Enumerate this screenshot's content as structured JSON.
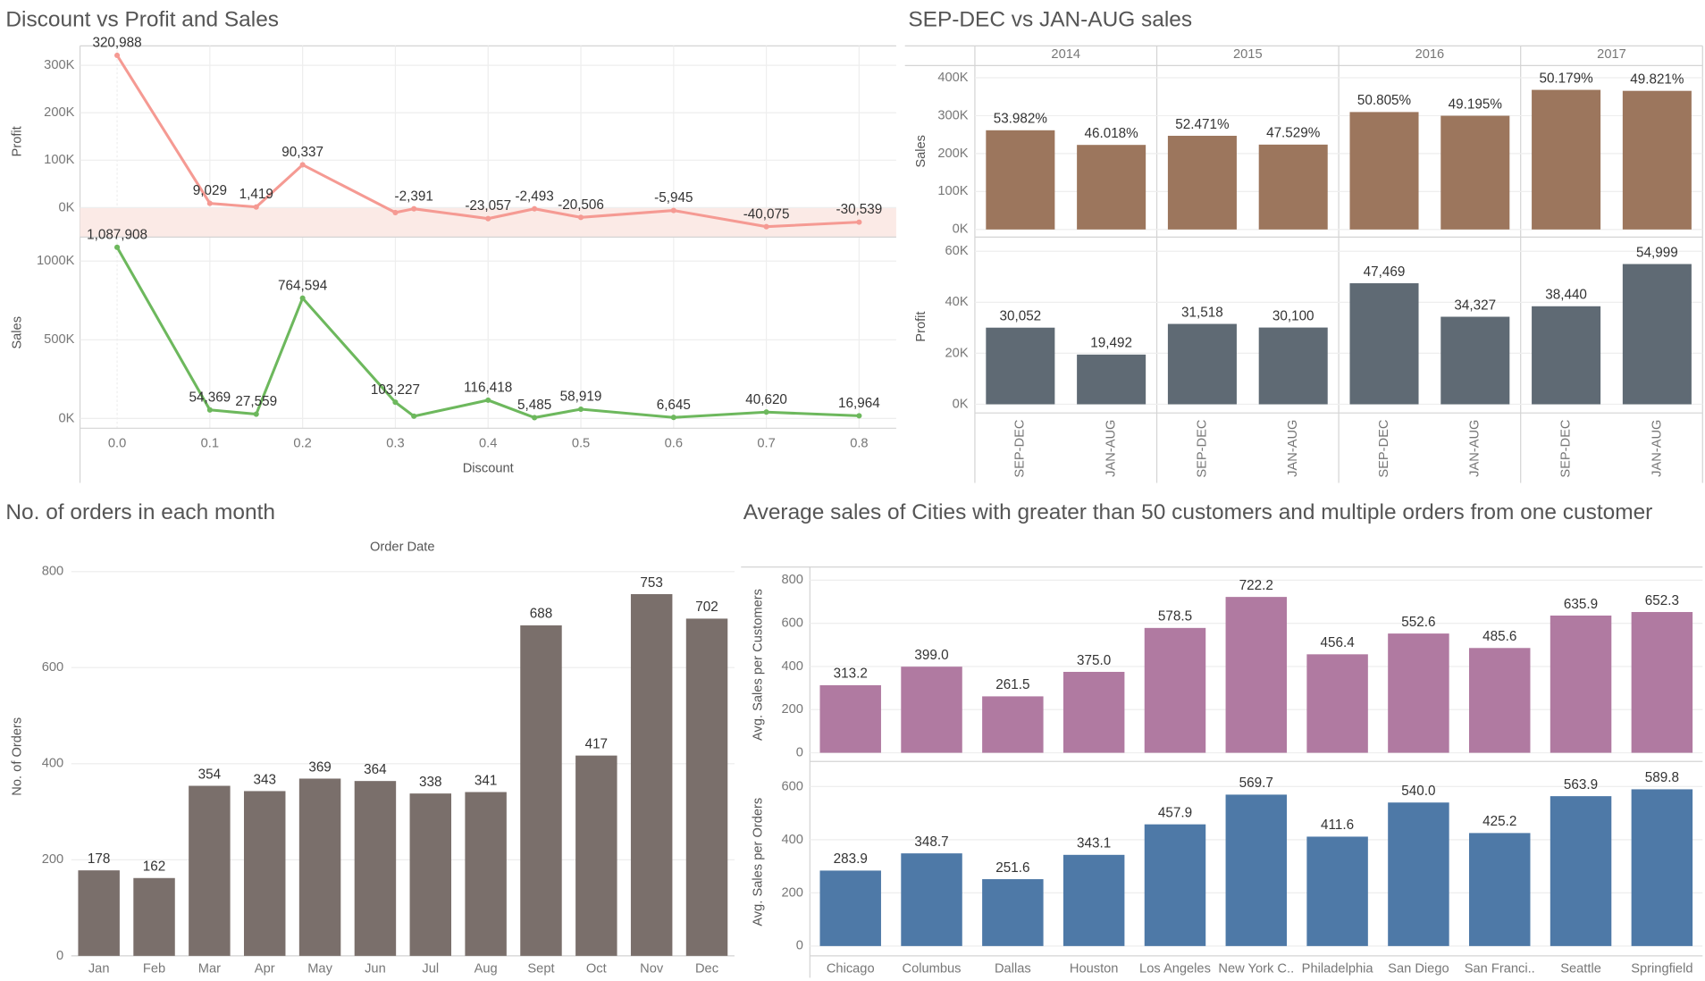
{
  "chart_data": [
    {
      "type": "line",
      "title": "Discount vs Profit and Sales",
      "x_label": "Discount",
      "x": [
        0,
        0.1,
        0.15,
        0.2,
        0.3,
        0.32,
        0.4,
        0.45,
        0.5,
        0.6,
        0.7,
        0.8
      ],
      "xlim": [
        -0.04,
        0.84
      ],
      "xticks": [
        {
          "value": 0,
          "label": "0.0"
        },
        0.1,
        0.2,
        0.3,
        0.4,
        0.5,
        0.6,
        0.7,
        0.8
      ],
      "grid": true,
      "series": [
        {
          "name": "Profit",
          "color": "#f59a93",
          "values": [
            320988,
            9029,
            1419,
            90337,
            -10369,
            -2391,
            -23057,
            -2493,
            -20506,
            -5945,
            -40075,
            -30539
          ],
          "value_labels": [
            "320,988",
            "9,029",
            "1,419",
            "90,337",
            null,
            "-2,391",
            "-23,057",
            "-2,493",
            "-20,506",
            "-5,945",
            "-40,075",
            "-30,539"
          ],
          "ylim": [
            -62000,
            341000
          ],
          "yticks": [
            {
              "value": 0,
              "label": "0K"
            },
            {
              "value": 100000,
              "label": "100K"
            },
            {
              "value": 200000,
              "label": "200K"
            },
            {
              "value": 300000,
              "label": "300K"
            }
          ]
        },
        {
          "name": "Sales",
          "color": "#6db85d",
          "values": [
            1087908,
            54369,
            27559,
            764594,
            103227,
            14493,
            116418,
            5485,
            58919,
            6645,
            40620,
            16964
          ],
          "value_labels": [
            "1,087,908",
            "54,369",
            "27,559",
            "764,594",
            "103,227",
            null,
            "116,418",
            "5,485",
            "58,919",
            "6,645",
            "40,620",
            "16,964"
          ],
          "ylim": [
            -62000,
            1153000
          ],
          "yticks": [
            {
              "value": 0,
              "label": "0K"
            },
            {
              "value": 500000,
              "label": "500K"
            },
            {
              "value": 1000000,
              "label": "1000K"
            }
          ]
        }
      ]
    },
    {
      "type": "bar",
      "title": "SEP-DEC vs JAN-AUG sales",
      "groups": [
        "2014",
        "2015",
        "2016",
        "2017"
      ],
      "categories": [
        "SEP-DEC",
        "JAN-AUG",
        "SEP-DEC",
        "JAN-AUG",
        "SEP-DEC",
        "JAN-AUG",
        "SEP-DEC",
        "JAN-AUG"
      ],
      "series": [
        {
          "name": "Sales",
          "color": "#9c765d",
          "values": [
            261405,
            222842,
            246886,
            223647,
            309489,
            299717,
            367919,
            365296
          ],
          "percent_labels": [
            "53.982%",
            "46.018%",
            "52.471%",
            "47.529%",
            "50.805%",
            "49.195%",
            "50.179%",
            "49.821%"
          ],
          "ylim": [
            -20000,
            432000
          ],
          "yticks": [
            {
              "value": 0,
              "label": "0K"
            },
            {
              "value": 100000,
              "label": "100K"
            },
            {
              "value": 200000,
              "label": "200K"
            },
            {
              "value": 300000,
              "label": "300K"
            },
            {
              "value": 400000,
              "label": "400K"
            }
          ]
        },
        {
          "name": "Profit",
          "color": "#5f6a74",
          "values": [
            30052,
            19492,
            31518,
            30100,
            47469,
            34327,
            38440,
            54999
          ],
          "value_labels": [
            "30,052",
            "19,492",
            "31,518",
            "30,100",
            "47,469",
            "34,327",
            "38,440",
            "54,999"
          ],
          "ylim": [
            -3400,
            64300
          ],
          "yticks": [
            {
              "value": 0,
              "label": "0K"
            },
            {
              "value": 20000,
              "label": "20K"
            },
            {
              "value": 40000,
              "label": "40K"
            },
            {
              "value": 60000,
              "label": "60K"
            }
          ]
        }
      ]
    },
    {
      "type": "bar",
      "title": "No. of orders in each month",
      "x_label": "Order Date",
      "y_label": "No. of Orders",
      "categories": [
        "Jan",
        "Feb",
        "Mar",
        "Apr",
        "May",
        "Jun",
        "Jul",
        "Aug",
        "Sept",
        "Oct",
        "Nov",
        "Dec"
      ],
      "values": [
        178,
        162,
        354,
        343,
        369,
        364,
        338,
        341,
        688,
        417,
        753,
        702
      ],
      "color": "#7a6f6b",
      "ylim": [
        0,
        830
      ],
      "yticks": [
        0,
        200,
        400,
        600,
        800
      ]
    },
    {
      "type": "bar",
      "title": "Average sales of Cities with greater than 50 customers and multiple orders from one customer",
      "categories": [
        "Chicago",
        "Columbus",
        "Dallas",
        "Houston",
        "Los Angeles",
        "New York C..",
        "Philadelphia",
        "San Diego",
        "San Franci..",
        "Seattle",
        "Springfield"
      ],
      "series": [
        {
          "name": "Avg. Sales per Customers",
          "color": "#b07aa1",
          "values": [
            313.2,
            399.0,
            261.5,
            375.0,
            578.5,
            722.2,
            456.4,
            552.6,
            485.6,
            635.9,
            652.3
          ],
          "value_labels": [
            "313.2",
            "399.0",
            "261.5",
            "375.0",
            "578.5",
            "722.2",
            "456.4",
            "552.6",
            "485.6",
            "635.9",
            "652.3"
          ],
          "ylim": [
            -40,
            856
          ],
          "yticks": [
            0,
            200,
            400,
            600,
            800
          ]
        },
        {
          "name": "Avg. Sales per Orders",
          "color": "#4e79a7",
          "values": [
            283.9,
            348.7,
            251.6,
            343.1,
            457.9,
            569.7,
            411.6,
            540.0,
            425.2,
            563.9,
            589.8
          ],
          "value_labels": [
            "283.9",
            "348.7",
            "251.6",
            "343.1",
            "457.9",
            "569.7",
            "411.6",
            "540.0",
            "425.2",
            "563.9",
            "589.8"
          ],
          "ylim": [
            -37,
            670
          ],
          "yticks": [
            0,
            200,
            400,
            600
          ]
        }
      ]
    }
  ]
}
